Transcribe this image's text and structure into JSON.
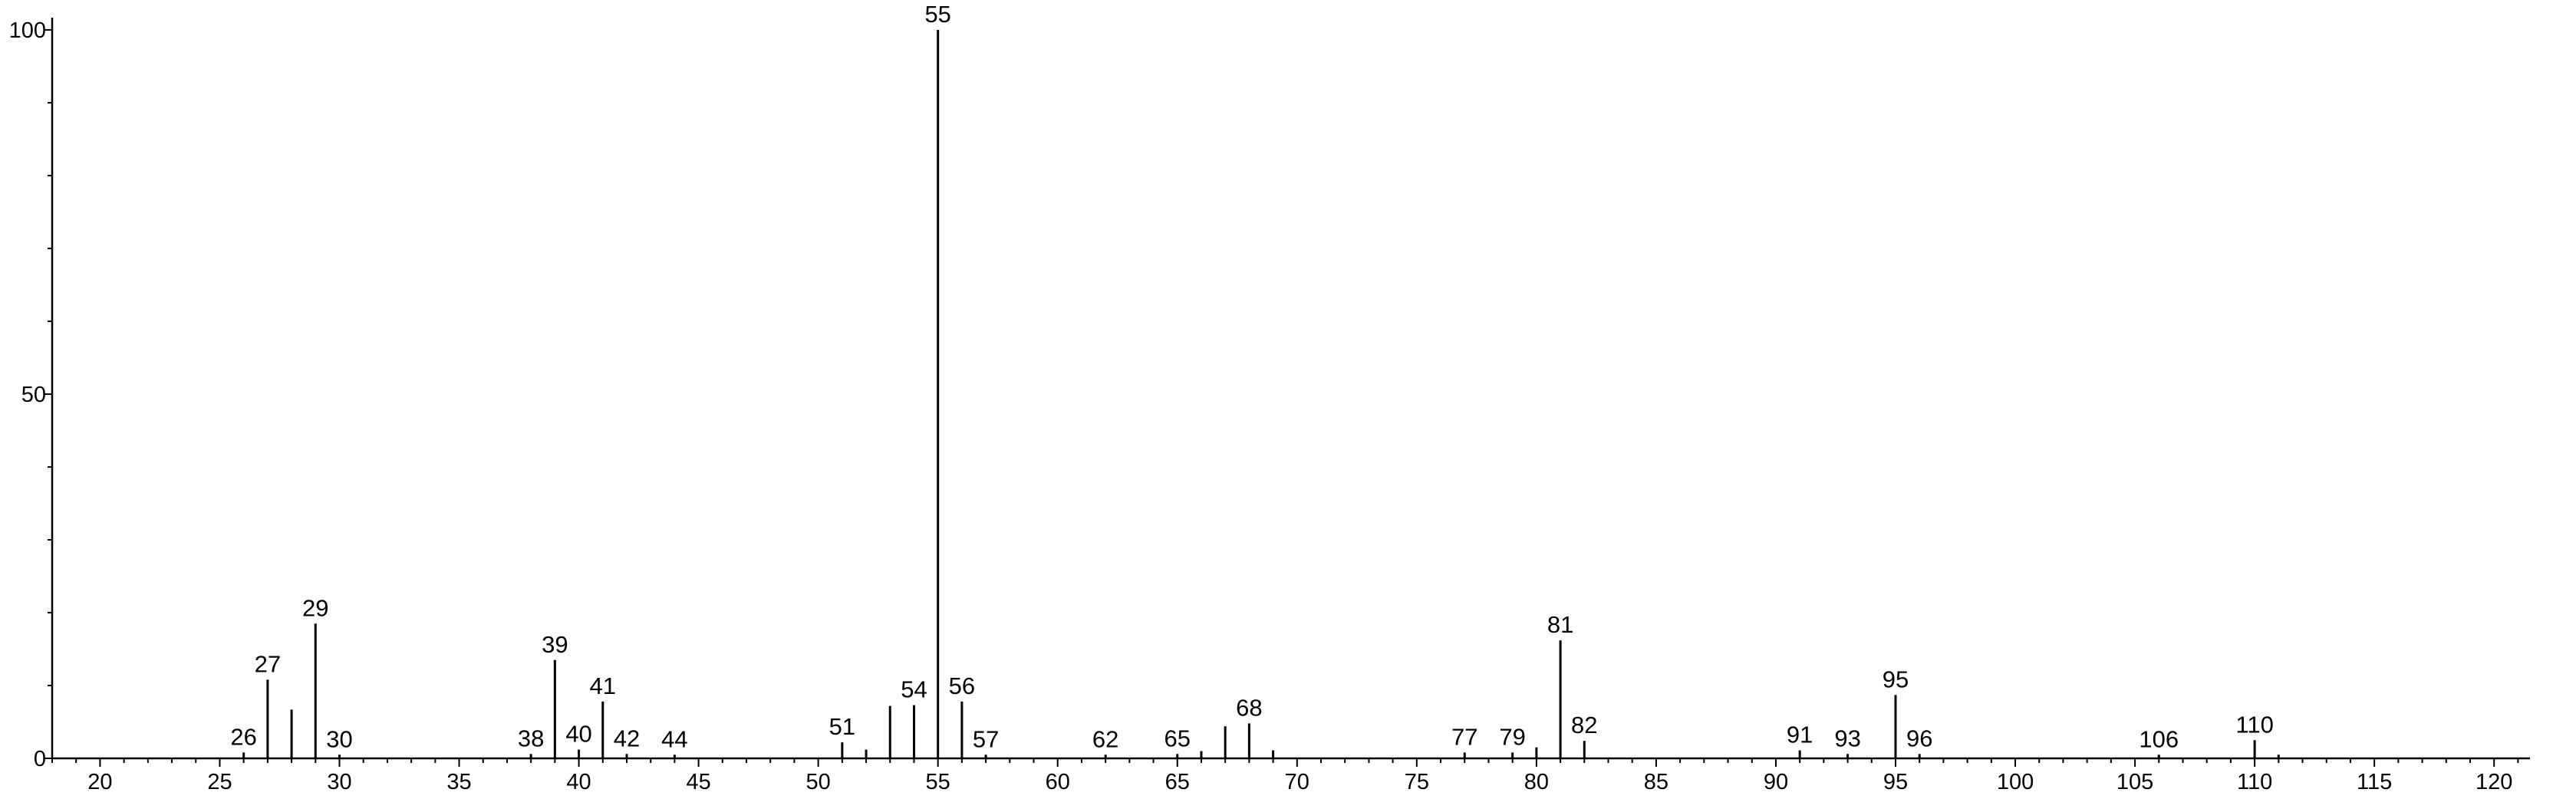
{
  "chart_data": {
    "type": "bar",
    "title": "",
    "xlabel": "",
    "ylabel": "",
    "xlim": [
      18,
      121.5
    ],
    "ylim": [
      0,
      100
    ],
    "x_ticks": [
      20,
      25,
      30,
      35,
      40,
      45,
      50,
      55,
      60,
      65,
      70,
      75,
      80,
      85,
      90,
      95,
      100,
      105,
      110,
      115,
      120
    ],
    "y_ticks": [
      0,
      50,
      100
    ],
    "grid": false,
    "legend": "none",
    "peaks": [
      {
        "mz": 26,
        "intensity": 0.8,
        "label": "26"
      },
      {
        "mz": 27,
        "intensity": 10.8,
        "label": "27"
      },
      {
        "mz": 28,
        "intensity": 6.7,
        "label": ""
      },
      {
        "mz": 29,
        "intensity": 18.5,
        "label": "29"
      },
      {
        "mz": 30,
        "intensity": 0.5,
        "label": "30"
      },
      {
        "mz": 38,
        "intensity": 0.6,
        "label": "38"
      },
      {
        "mz": 39,
        "intensity": 13.5,
        "label": "39"
      },
      {
        "mz": 40,
        "intensity": 1.2,
        "label": "40"
      },
      {
        "mz": 41,
        "intensity": 7.8,
        "label": "41"
      },
      {
        "mz": 42,
        "intensity": 0.6,
        "label": "42"
      },
      {
        "mz": 44,
        "intensity": 0.5,
        "label": "44"
      },
      {
        "mz": 51,
        "intensity": 2.2,
        "label": "51"
      },
      {
        "mz": 52,
        "intensity": 1.2,
        "label": ""
      },
      {
        "mz": 53,
        "intensity": 7.2,
        "label": ""
      },
      {
        "mz": 54,
        "intensity": 7.3,
        "label": "54"
      },
      {
        "mz": 55,
        "intensity": 100,
        "label": "55"
      },
      {
        "mz": 56,
        "intensity": 7.8,
        "label": "56"
      },
      {
        "mz": 57,
        "intensity": 0.5,
        "label": "57"
      },
      {
        "mz": 62,
        "intensity": 0.5,
        "label": "62"
      },
      {
        "mz": 65,
        "intensity": 0.6,
        "label": "65"
      },
      {
        "mz": 66,
        "intensity": 1.0,
        "label": ""
      },
      {
        "mz": 67,
        "intensity": 4.4,
        "label": ""
      },
      {
        "mz": 68,
        "intensity": 4.8,
        "label": "68"
      },
      {
        "mz": 69,
        "intensity": 1.1,
        "label": ""
      },
      {
        "mz": 77,
        "intensity": 0.8,
        "label": "77"
      },
      {
        "mz": 79,
        "intensity": 0.8,
        "label": "79"
      },
      {
        "mz": 80,
        "intensity": 1.5,
        "label": ""
      },
      {
        "mz": 81,
        "intensity": 16.2,
        "label": "81"
      },
      {
        "mz": 82,
        "intensity": 2.4,
        "label": "82"
      },
      {
        "mz": 91,
        "intensity": 1.1,
        "label": "91"
      },
      {
        "mz": 93,
        "intensity": 0.6,
        "label": "93"
      },
      {
        "mz": 95,
        "intensity": 8.7,
        "label": "95"
      },
      {
        "mz": 96,
        "intensity": 0.6,
        "label": "96"
      },
      {
        "mz": 106,
        "intensity": 0.5,
        "label": "106"
      },
      {
        "mz": 110,
        "intensity": 2.5,
        "label": "110"
      },
      {
        "mz": 111,
        "intensity": 0.5,
        "label": ""
      }
    ]
  }
}
